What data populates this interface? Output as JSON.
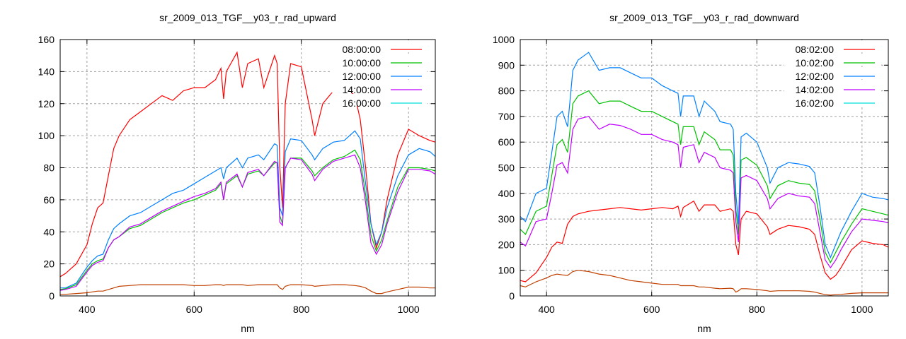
{
  "chart_data": [
    {
      "type": "line",
      "title": "sr_2009_013_TGF__y03_r_rad_upward",
      "xlabel": "nm",
      "ylabel": "",
      "xlim": [
        350,
        1050
      ],
      "ylim": [
        0,
        160
      ],
      "xticks": [
        400,
        600,
        800,
        1000
      ],
      "yticks": [
        0,
        20,
        40,
        60,
        80,
        100,
        120,
        140,
        160
      ],
      "grid": true,
      "legend_position": "top-right",
      "x": [
        350,
        360,
        380,
        400,
        410,
        420,
        430,
        440,
        450,
        460,
        480,
        500,
        520,
        540,
        560,
        580,
        600,
        620,
        640,
        650,
        655,
        660,
        680,
        690,
        700,
        720,
        730,
        750,
        755,
        760,
        765,
        770,
        780,
        800,
        820,
        825,
        840,
        860,
        880,
        900,
        910,
        920,
        930,
        940,
        950,
        960,
        980,
        1000,
        1020,
        1040,
        1050
      ],
      "series": [
        {
          "name": "08:00:00",
          "color": "#ff0000",
          "legend_color": "#ff0000",
          "values": [
            12,
            14,
            20,
            32,
            45,
            55,
            58,
            75,
            92,
            100,
            110,
            115,
            120,
            125,
            122,
            128,
            130,
            130,
            135,
            142,
            123,
            140,
            152,
            130,
            145,
            148,
            130,
            150,
            145,
            80,
            55,
            120,
            145,
            143,
            110,
            100,
            120,
            128,
            131,
            125,
            110,
            80,
            45,
            30,
            40,
            60,
            88,
            104,
            100,
            97,
            96
          ]
        },
        {
          "name": "10:00:00",
          "color": "#00c000",
          "legend_color": "#00c000",
          "values": [
            4,
            4.5,
            7,
            16,
            20,
            22,
            23,
            30,
            35,
            37,
            42,
            44,
            48,
            52,
            55,
            58,
            60,
            63,
            66,
            70,
            60,
            70,
            75,
            68,
            76,
            78,
            75,
            83,
            83,
            50,
            45,
            80,
            86,
            86,
            78,
            75,
            80,
            85,
            87,
            91,
            85,
            63,
            38,
            28,
            35,
            47,
            68,
            80,
            80,
            79,
            78
          ]
        },
        {
          "name": "12:00:00",
          "color": "#0080ff",
          "legend_color": "#0080ff",
          "values": [
            5,
            5,
            8,
            18,
            22,
            25,
            26,
            35,
            42,
            45,
            50,
            52,
            56,
            60,
            64,
            66,
            70,
            74,
            78,
            80,
            73,
            80,
            86,
            80,
            86,
            88,
            85,
            95,
            94,
            55,
            50,
            90,
            98,
            97,
            88,
            85,
            92,
            96,
            97,
            103,
            98,
            70,
            45,
            32,
            40,
            55,
            75,
            88,
            92,
            90,
            87
          ]
        },
        {
          "name": "14:00:00",
          "color": "#c000ff",
          "legend_color": "#c000ff",
          "values": [
            3.5,
            4,
            6,
            15,
            19,
            21,
            22,
            30,
            35,
            37,
            43,
            45,
            49,
            53,
            56,
            59,
            62,
            64,
            67,
            71,
            60,
            71,
            76,
            68,
            77,
            79,
            75,
            84,
            83,
            46,
            44,
            80,
            86,
            85,
            76,
            72,
            79,
            84,
            86,
            88,
            80,
            58,
            33,
            26,
            32,
            45,
            65,
            79,
            79,
            78,
            76
          ]
        },
        {
          "name": "16:00:00",
          "color": "#c04000",
          "legend_color": "#00e0e0",
          "values": [
            1,
            1,
            1.5,
            2,
            2.5,
            3,
            3,
            4,
            5,
            6,
            6.5,
            7,
            7,
            7,
            7,
            7,
            6.5,
            6.5,
            7,
            7,
            6.5,
            7,
            7,
            7,
            6.5,
            7,
            7,
            7,
            7,
            5,
            4,
            6,
            7,
            7,
            6.5,
            6,
            6.5,
            7,
            7,
            6.5,
            6,
            5,
            3,
            1.5,
            1.5,
            2.5,
            4,
            5.5,
            5.5,
            5,
            5
          ]
        }
      ]
    },
    {
      "type": "line",
      "title": "sr_2009_013_TGF__y03_r_rad_downward",
      "xlabel": "nm",
      "ylabel": "",
      "xlim": [
        350,
        1050
      ],
      "ylim": [
        0,
        1000
      ],
      "xticks": [
        400,
        600,
        800,
        1000
      ],
      "yticks": [
        0,
        100,
        200,
        300,
        400,
        500,
        600,
        700,
        800,
        900,
        1000
      ],
      "grid": true,
      "legend_position": "top-right",
      "x": [
        350,
        360,
        380,
        400,
        410,
        420,
        430,
        440,
        450,
        460,
        480,
        500,
        520,
        540,
        560,
        580,
        600,
        620,
        640,
        650,
        655,
        660,
        680,
        690,
        700,
        720,
        730,
        750,
        755,
        760,
        765,
        770,
        780,
        800,
        820,
        825,
        840,
        860,
        880,
        900,
        910,
        920,
        930,
        940,
        950,
        960,
        980,
        1000,
        1020,
        1040,
        1050
      ],
      "series": [
        {
          "name": "08:02:00",
          "color": "#ff0000",
          "legend_color": "#ff0000",
          "values": [
            60,
            55,
            90,
            150,
            190,
            210,
            205,
            280,
            310,
            320,
            330,
            335,
            340,
            345,
            340,
            335,
            340,
            345,
            340,
            350,
            310,
            345,
            370,
            330,
            355,
            355,
            330,
            340,
            330,
            200,
            160,
            300,
            330,
            320,
            270,
            240,
            260,
            275,
            270,
            260,
            240,
            160,
            90,
            65,
            80,
            110,
            180,
            215,
            205,
            200,
            190
          ]
        },
        {
          "name": "10:02:00",
          "color": "#00c000",
          "legend_color": "#00c000",
          "values": [
            260,
            240,
            330,
            350,
            470,
            590,
            610,
            560,
            750,
            780,
            800,
            750,
            760,
            760,
            740,
            720,
            720,
            700,
            680,
            670,
            590,
            660,
            660,
            590,
            640,
            610,
            570,
            570,
            550,
            340,
            240,
            530,
            540,
            510,
            430,
            380,
            430,
            450,
            440,
            435,
            410,
            300,
            170,
            130,
            170,
            210,
            280,
            340,
            330,
            320,
            315
          ]
        },
        {
          "name": "12:02:00",
          "color": "#0080ff",
          "legend_color": "#0080ff",
          "values": [
            310,
            290,
            400,
            420,
            560,
            700,
            720,
            660,
            880,
            920,
            950,
            880,
            890,
            890,
            870,
            850,
            850,
            820,
            800,
            790,
            700,
            780,
            780,
            700,
            760,
            720,
            680,
            670,
            650,
            400,
            280,
            620,
            635,
            600,
            500,
            440,
            500,
            520,
            515,
            505,
            480,
            350,
            200,
            150,
            200,
            250,
            330,
            400,
            385,
            380,
            375
          ]
        },
        {
          "name": "14:02:00",
          "color": "#c000ff",
          "legend_color": "#c000ff",
          "values": [
            210,
            195,
            290,
            300,
            400,
            510,
            520,
            480,
            650,
            690,
            700,
            650,
            670,
            665,
            650,
            630,
            630,
            610,
            600,
            590,
            500,
            580,
            590,
            520,
            560,
            540,
            500,
            490,
            480,
            290,
            210,
            460,
            470,
            450,
            380,
            340,
            380,
            400,
            390,
            385,
            360,
            250,
            140,
            110,
            140,
            180,
            250,
            300,
            295,
            290,
            285
          ]
        },
        {
          "name": "16:02:00",
          "color": "#c04000",
          "legend_color": "#00e0e0",
          "values": [
            40,
            35,
            55,
            70,
            80,
            85,
            82,
            80,
            95,
            100,
            95,
            85,
            80,
            70,
            60,
            55,
            50,
            45,
            45,
            45,
            40,
            40,
            40,
            35,
            35,
            30,
            28,
            30,
            28,
            15,
            20,
            28,
            28,
            25,
            20,
            18,
            20,
            20,
            20,
            18,
            15,
            10,
            5,
            3,
            5,
            6,
            10,
            12,
            12,
            12,
            12
          ]
        }
      ]
    }
  ]
}
